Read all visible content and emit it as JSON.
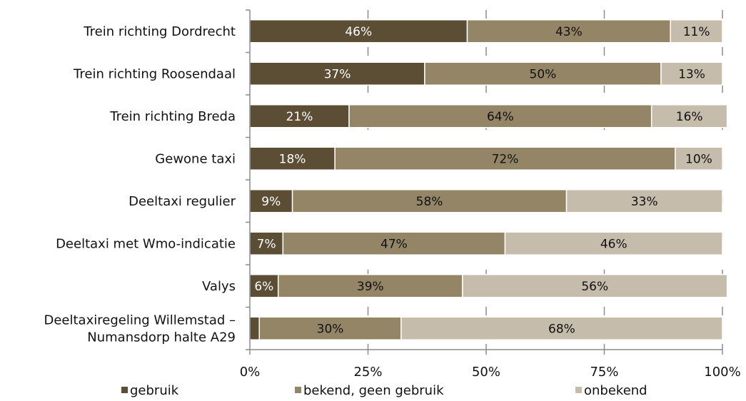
{
  "chart_data": {
    "type": "bar",
    "orientation": "horizontal",
    "stacked": true,
    "categories": [
      "Trein richting Dordrecht",
      "Trein richting Roosendaal",
      "Trein richting Breda",
      "Gewone taxi",
      "Deeltaxi regulier",
      "Deeltaxi met Wmo-indicatie",
      "Valys",
      "Deeltaxiregeling Willemstad –\nNumansdorp halte A29"
    ],
    "series": [
      {
        "name": "gebruik",
        "color": "#5c4d35",
        "values": [
          46,
          37,
          21,
          18,
          9,
          7,
          6,
          2
        ],
        "labels": [
          "46%",
          "37%",
          "21%",
          "18%",
          "9%",
          "7%",
          "6%",
          ""
        ]
      },
      {
        "name": "bekend, geen gebruik",
        "color": "#958567",
        "values": [
          43,
          50,
          64,
          72,
          58,
          47,
          39,
          30
        ],
        "labels": [
          "43%",
          "50%",
          "64%",
          "72%",
          "58%",
          "47%",
          "39%",
          "30%"
        ]
      },
      {
        "name": "onbekend",
        "color": "#c5bcab",
        "values": [
          11,
          13,
          16,
          10,
          33,
          46,
          56,
          68
        ],
        "labels": [
          "11%",
          "13%",
          "16%",
          "10%",
          "33%",
          "46%",
          "56%",
          "68%"
        ]
      }
    ],
    "xlim": [
      0,
      100
    ],
    "xticks": [
      "0%",
      "25%",
      "50%",
      "75%",
      "100%"
    ],
    "grid": true,
    "legend_position": "bottom"
  }
}
